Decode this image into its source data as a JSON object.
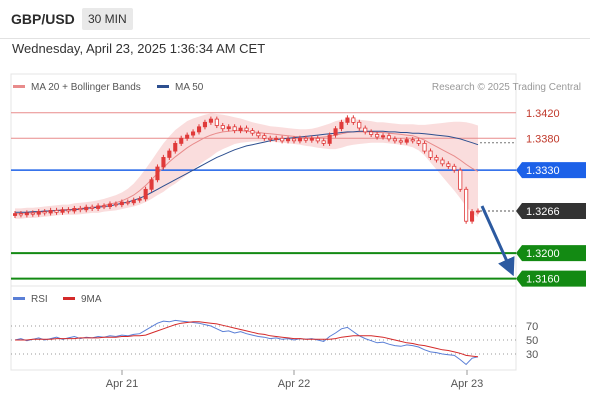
{
  "header": {
    "pair": "GBP/USD",
    "timeframe": "30 MIN",
    "datetime": "Wednesday, April 23, 2025 1:36:34 AM CET"
  },
  "legend": {
    "ma20_bb": "MA 20 + Bollinger Bands",
    "ma50": "MA 50",
    "credit": "Research © 2025 Trading Central",
    "rsi": "RSI",
    "rsi_ma": "9MA"
  },
  "colors": {
    "candle": "#e03a3a",
    "bollinger_band": "#f9d7d7",
    "ma20": "#e88b8b",
    "ma50": "#2d4f8f",
    "resistance": "#e88b8b",
    "pivot": "#1c61e8",
    "support": "#138a13",
    "current": "#333333",
    "arrow": "#2c5aa0",
    "rsi": "#5a7fd6",
    "rsi_ma": "#d42a2a"
  },
  "chart_data": {
    "type": "candlestick",
    "x_ticks": [
      "Apr 21",
      "Apr 22",
      "Apr 23"
    ],
    "y_axis_labels": [
      {
        "value": 1.342,
        "label": "1.3420",
        "kind": "resistance"
      },
      {
        "value": 1.338,
        "label": "1.3380",
        "kind": "resistance"
      },
      {
        "value": 1.333,
        "label": "1.3330",
        "kind": "pivot"
      },
      {
        "value": 1.3266,
        "label": "1.3266",
        "kind": "current"
      },
      {
        "value": 1.32,
        "label": "1.3200",
        "kind": "support"
      },
      {
        "value": 1.316,
        "label": "1.3160",
        "kind": "support"
      }
    ],
    "price_range": [
      1.315,
      1.344
    ],
    "closes": [
      1.3262,
      1.326,
      1.3263,
      1.3261,
      1.3265,
      1.3263,
      1.3267,
      1.3264,
      1.3268,
      1.3266,
      1.327,
      1.3268,
      1.3272,
      1.327,
      1.3274,
      1.3273,
      1.3277,
      1.3276,
      1.328,
      1.3279,
      1.3283,
      1.3285,
      1.33,
      1.3315,
      1.3335,
      1.335,
      1.336,
      1.3372,
      1.338,
      1.3385,
      1.339,
      1.3398,
      1.3405,
      1.341,
      1.34,
      1.3395,
      1.3398,
      1.3392,
      1.3396,
      1.3392,
      1.3388,
      1.3384,
      1.338,
      1.3378,
      1.338,
      1.3376,
      1.3379,
      1.3376,
      1.338,
      1.3377,
      1.338,
      1.3376,
      1.3372,
      1.3385,
      1.3395,
      1.3405,
      1.3412,
      1.3405,
      1.3396,
      1.339,
      1.3386,
      1.3382,
      1.3384,
      1.3379,
      1.3376,
      1.3374,
      1.3378,
      1.3376,
      1.3372,
      1.336,
      1.335,
      1.3346,
      1.334,
      1.3336,
      1.333,
      1.33,
      1.325,
      1.3265,
      1.3266
    ],
    "ma20": [
      1.3262,
      1.3262,
      1.3263,
      1.3263,
      1.3264,
      1.3265,
      1.3266,
      1.3267,
      1.3268,
      1.3268,
      1.3269,
      1.327,
      1.3271,
      1.3272,
      1.3273,
      1.3275,
      1.3277,
      1.3279,
      1.3282,
      1.3286,
      1.3291,
      1.3298,
      1.3306,
      1.3315,
      1.3325,
      1.3334,
      1.3343,
      1.3351,
      1.3358,
      1.3365,
      1.3371,
      1.3376,
      1.3381,
      1.3385,
      1.3388,
      1.339,
      1.3391,
      1.3392,
      1.3392,
      1.3391,
      1.339,
      1.3389,
      1.3388,
      1.3387,
      1.3386,
      1.3385,
      1.3384,
      1.3383,
      1.3382,
      1.3381,
      1.3381,
      1.3381,
      1.3382,
      1.3383,
      1.3385,
      1.3387,
      1.3389,
      1.339,
      1.339,
      1.339,
      1.339,
      1.3389,
      1.3389,
      1.3388,
      1.3387,
      1.3386,
      1.3385,
      1.3384,
      1.3381,
      1.3377,
      1.3372,
      1.3367,
      1.3362,
      1.3357,
      1.3352,
      1.3346,
      1.3339,
      1.3333,
      1.3328
    ],
    "ma50": [
      1.3264,
      1.3264,
      1.3264,
      1.3265,
      1.3265,
      1.3266,
      1.3266,
      1.3267,
      1.3267,
      1.3268,
      1.3268,
      1.3269,
      1.327,
      1.3271,
      1.3272,
      1.3273,
      1.3274,
      1.3276,
      1.3278,
      1.328,
      1.3283,
      1.3286,
      1.329,
      1.3295,
      1.33,
      1.3305,
      1.331,
      1.3315,
      1.332,
      1.3325,
      1.333,
      1.3335,
      1.334,
      1.3345,
      1.335,
      1.3354,
      1.3358,
      1.3362,
      1.3365,
      1.3368,
      1.337,
      1.3372,
      1.3374,
      1.3376,
      1.3378,
      1.3379,
      1.338,
      1.3381,
      1.3382,
      1.3383,
      1.3384,
      1.3385,
      1.3386,
      1.3387,
      1.3388,
      1.3389,
      1.339,
      1.339,
      1.3391,
      1.3391,
      1.3391,
      1.3391,
      1.3391,
      1.339,
      1.339,
      1.3389,
      1.3389,
      1.3388,
      1.3388,
      1.3387,
      1.3386,
      1.3385,
      1.3384,
      1.3383,
      1.3381,
      1.3379,
      1.3376,
      1.3373,
      1.337
    ],
    "bb_width": [
      0.0008,
      0.0008,
      0.0008,
      0.0008,
      0.0008,
      0.0008,
      0.0008,
      0.0008,
      0.0008,
      0.0008,
      0.0009,
      0.0009,
      0.0009,
      0.0009,
      0.001,
      0.001,
      0.0011,
      0.0012,
      0.0013,
      0.0015,
      0.0018,
      0.0022,
      0.0026,
      0.003,
      0.0034,
      0.0038,
      0.004,
      0.0042,
      0.0042,
      0.0042,
      0.004,
      0.0038,
      0.0036,
      0.0034,
      0.003,
      0.0027,
      0.0024,
      0.0021,
      0.0019,
      0.0017,
      0.0015,
      0.0014,
      0.0013,
      0.0012,
      0.0012,
      0.0012,
      0.0012,
      0.0012,
      0.0012,
      0.0013,
      0.0014,
      0.0016,
      0.0018,
      0.002,
      0.0022,
      0.0022,
      0.0021,
      0.002,
      0.0019,
      0.0018,
      0.0017,
      0.0016,
      0.0016,
      0.0016,
      0.0016,
      0.0016,
      0.0017,
      0.0018,
      0.002,
      0.0024,
      0.003,
      0.0036,
      0.0042,
      0.0048,
      0.0054,
      0.006,
      0.0066,
      0.007,
      0.0072
    ],
    "rsi": {
      "levels": [
        70,
        50,
        30
      ],
      "range": [
        10,
        90
      ],
      "rsi": [
        50,
        52,
        49,
        51,
        53,
        50,
        52,
        54,
        51,
        53,
        55,
        52,
        54,
        53,
        55,
        54,
        56,
        55,
        57,
        56,
        58,
        59,
        64,
        69,
        74,
        77,
        76,
        78,
        77,
        76,
        75,
        74,
        72,
        70,
        66,
        62,
        63,
        60,
        62,
        59,
        57,
        55,
        54,
        52,
        53,
        51,
        52,
        50,
        52,
        51,
        52,
        50,
        48,
        55,
        60,
        66,
        68,
        62,
        56,
        52,
        49,
        46,
        47,
        44,
        42,
        41,
        43,
        42,
        40,
        36,
        33,
        32,
        30,
        29,
        28,
        22,
        15,
        24,
        26
      ],
      "ma9": [
        50,
        50,
        50,
        51,
        51,
        51,
        51,
        52,
        52,
        52,
        52,
        53,
        53,
        53,
        53,
        54,
        54,
        54,
        55,
        55,
        56,
        56,
        57,
        60,
        63,
        66,
        69,
        72,
        74,
        75,
        76,
        76,
        75,
        74,
        73,
        71,
        69,
        67,
        65,
        63,
        61,
        59,
        58,
        56,
        55,
        54,
        53,
        52,
        52,
        51,
        51,
        51,
        51,
        51,
        52,
        54,
        55,
        56,
        56,
        56,
        56,
        55,
        54,
        52,
        50,
        48,
        46,
        45,
        43,
        42,
        40,
        38,
        36,
        35,
        33,
        31,
        28,
        27,
        26
      ]
    }
  }
}
